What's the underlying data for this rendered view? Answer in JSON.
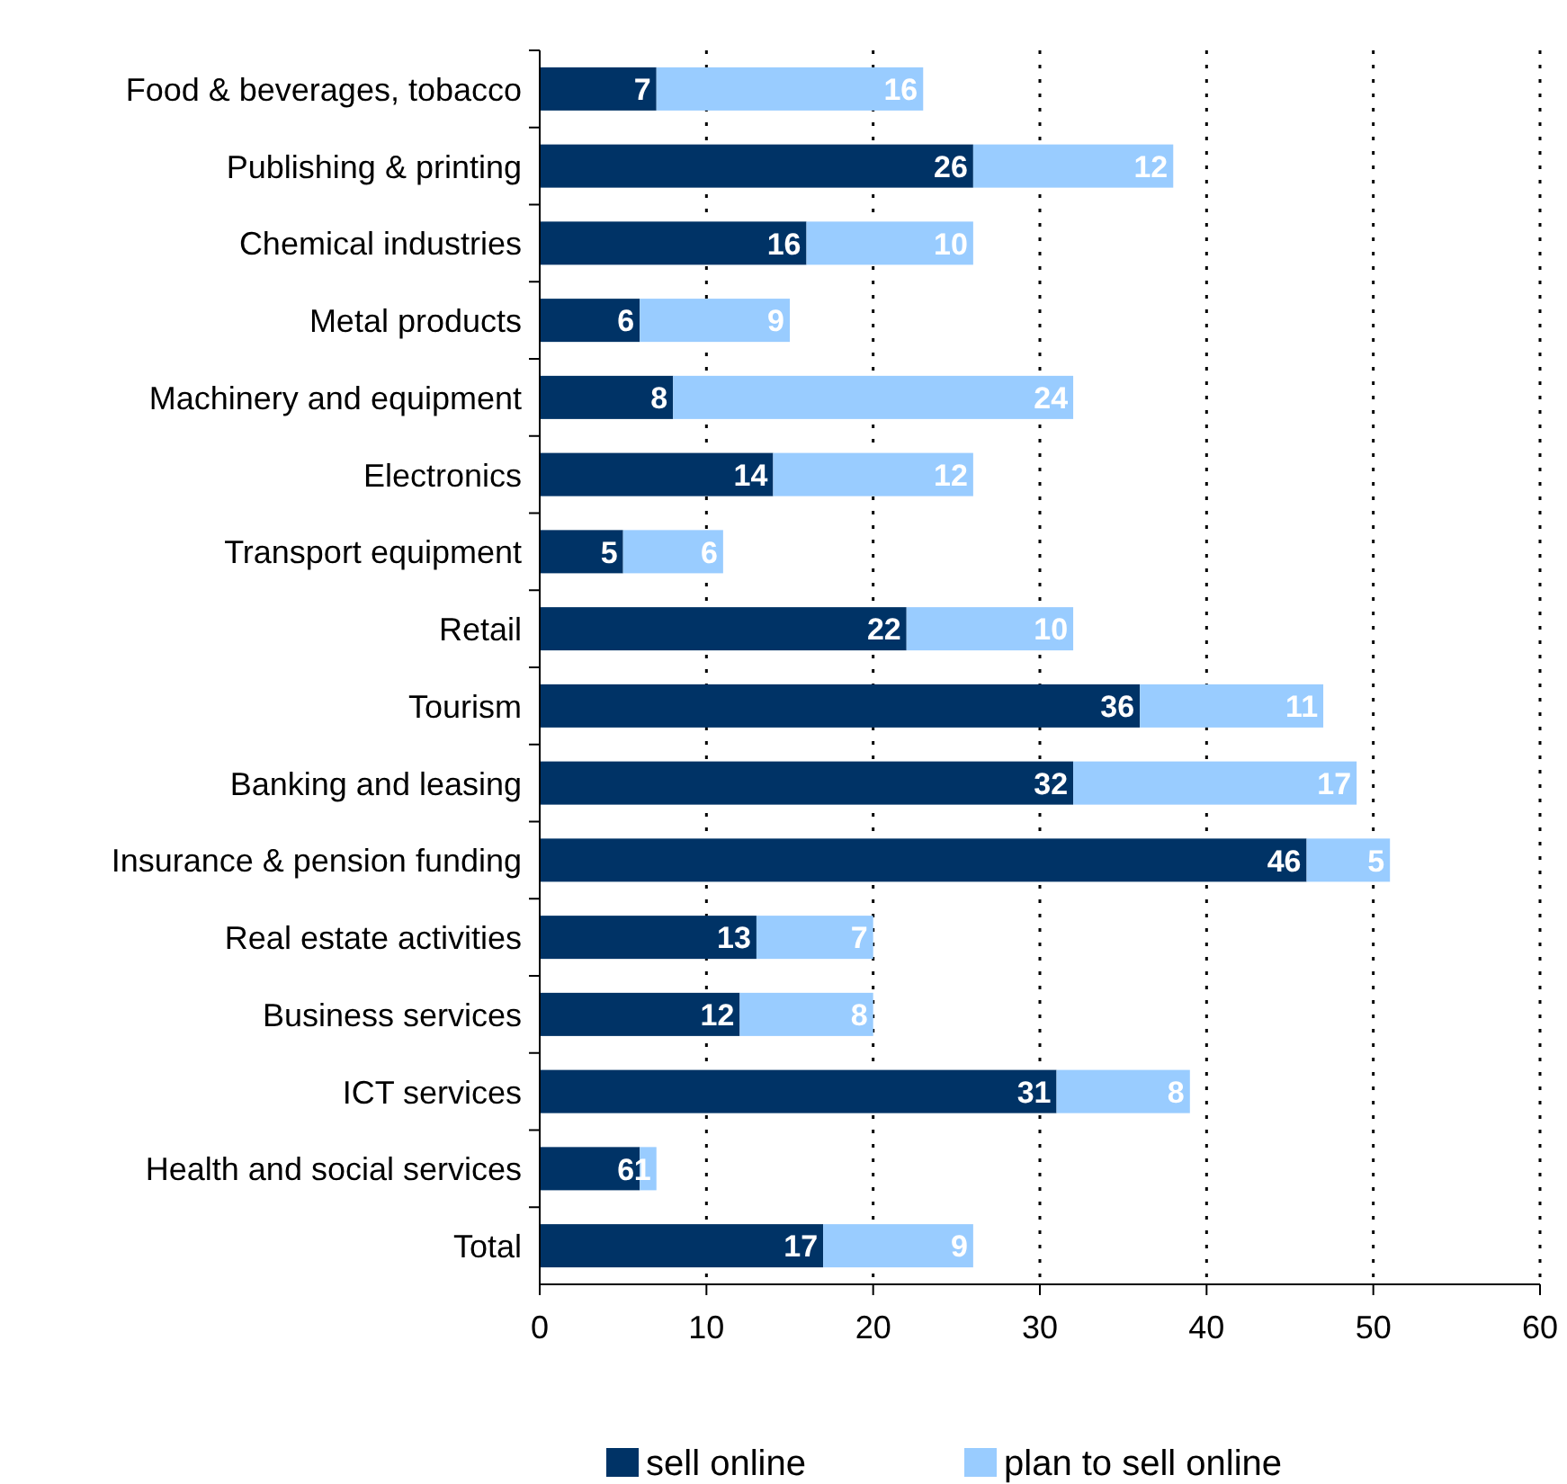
{
  "chart_data": {
    "type": "bar",
    "orientation": "horizontal",
    "stacked": true,
    "categories": [
      "Food & beverages, tobacco",
      "Publishing & printing",
      "Chemical industries",
      "Metal products",
      "Machinery and equipment",
      "Electronics",
      "Transport equipment",
      "Retail",
      "Tourism",
      "Banking and leasing",
      "Insurance & pension funding",
      "Real estate activities",
      "Business services",
      "ICT services",
      "Health and social services",
      "Total"
    ],
    "series": [
      {
        "name": "sell online",
        "color": "#003366",
        "values": [
          7,
          26,
          16,
          6,
          8,
          14,
          5,
          22,
          36,
          32,
          46,
          13,
          12,
          31,
          6,
          17
        ]
      },
      {
        "name": "plan to sell online",
        "color": "#99ccff",
        "values": [
          16,
          12,
          10,
          9,
          24,
          12,
          6,
          10,
          11,
          17,
          5,
          7,
          8,
          8,
          1,
          9
        ]
      }
    ],
    "xlim": [
      0,
      60
    ],
    "xticks": [
      0,
      10,
      20,
      30,
      40,
      50,
      60
    ],
    "grid": "x",
    "legend": "bottom",
    "data_labels": true
  }
}
